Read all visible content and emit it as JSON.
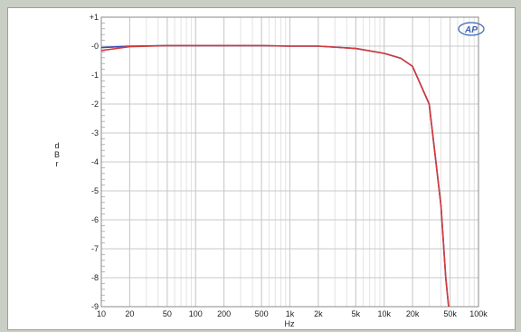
{
  "chart_data": {
    "type": "line",
    "xscale": "log",
    "xlim": [
      10,
      100000
    ],
    "ylim": [
      -9,
      1
    ],
    "xlabel": "Hz",
    "ylabel": "dBr",
    "x_ticks": [
      10,
      20,
      50,
      100,
      200,
      500,
      1000,
      2000,
      5000,
      10000,
      20000,
      50000,
      100000
    ],
    "x_tick_labels": [
      "10",
      "20",
      "50",
      "100",
      "200",
      "500",
      "1k",
      "2k",
      "5k",
      "10k",
      "20k",
      "50k",
      "100k"
    ],
    "y_ticks": [
      1,
      0,
      -1,
      -2,
      -3,
      -4,
      -5,
      -6,
      -7,
      -8,
      -9
    ],
    "y_tick_labels": [
      "+1",
      "-0",
      "-1",
      "-2",
      "-3",
      "-4",
      "-5",
      "-6",
      "-7",
      "-8",
      "-9"
    ],
    "grid": true,
    "series": [
      {
        "color": "#3a4bb0",
        "x": [
          10,
          20,
          50,
          100,
          200,
          500,
          1000,
          2000,
          5000,
          10000,
          15000,
          20000,
          30000,
          40000,
          45000,
          50000
        ],
        "y": [
          -0.05,
          0.0,
          0.02,
          0.02,
          0.02,
          0.02,
          0.0,
          0.0,
          -0.08,
          -0.25,
          -0.42,
          -0.7,
          -2.0,
          -5.5,
          -8.0,
          -9.5
        ]
      },
      {
        "color": "#d43a3a",
        "x": [
          10,
          20,
          50,
          100,
          200,
          500,
          1000,
          2000,
          5000,
          10000,
          15000,
          20000,
          30000,
          40000,
          45000,
          50000
        ],
        "y": [
          -0.15,
          -0.02,
          0.02,
          0.02,
          0.02,
          0.02,
          0.0,
          0.0,
          -0.08,
          -0.25,
          -0.42,
          -0.7,
          -2.0,
          -5.5,
          -8.0,
          -9.5
        ]
      }
    ]
  },
  "logo": {
    "text": "AP",
    "color": "#3a63b5"
  },
  "colors": {
    "background": "#c9cfc4",
    "grid": "#c8c8c8",
    "minor_grid": "#e3e3e3"
  }
}
